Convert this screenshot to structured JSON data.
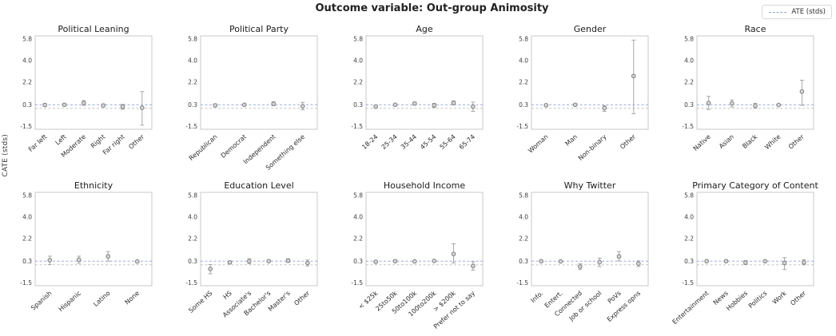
{
  "figure": {
    "suptitle": "Outcome variable: Out-group Animosity",
    "ylabel": "CATE (stds)",
    "legend_label": "ATE (stds)"
  },
  "colors": {
    "ate_line": "#9aa8dc",
    "zero_line": "#c6c6c6",
    "marker_fill": "#d8d8d8",
    "marker_stroke": "#7d7d7d",
    "error_bar": "#a8a8a8",
    "spine": "#c9c9c9",
    "ytick_text": "#3d3d3d",
    "xtick_text": "#2b2b2b",
    "title_text": "#1c1c1c",
    "plot_bg": "#ffffff"
  },
  "axes": {
    "yticks": [
      5.8,
      4.0,
      2.2,
      0.3,
      -1.5
    ],
    "ylim": [
      -1.75,
      6.05
    ],
    "ate_value": 0.3,
    "zero_value": 0.0
  },
  "chart_data": [
    {
      "type": "scatter",
      "title": "Political Leaning",
      "categories": [
        "Far left",
        "Left",
        "Moderate",
        "Right",
        "Far right",
        "Other"
      ],
      "values": [
        0.28,
        0.3,
        0.45,
        0.24,
        0.14,
        0.05
      ],
      "err_low": [
        0.16,
        0.2,
        0.25,
        0.12,
        -0.08,
        -1.4
      ],
      "err_high": [
        0.4,
        0.4,
        0.65,
        0.36,
        0.33,
        1.4
      ]
    },
    {
      "type": "scatter",
      "title": "Political Party",
      "categories": [
        "Republican",
        "Democrat",
        "Independent",
        "Something else"
      ],
      "values": [
        0.25,
        0.3,
        0.38,
        0.18
      ],
      "err_low": [
        0.13,
        0.24,
        0.22,
        -0.12
      ],
      "err_high": [
        0.37,
        0.36,
        0.55,
        0.5
      ]
    },
    {
      "type": "scatter",
      "title": "Age",
      "categories": [
        "18-24",
        "25-34",
        "35-44",
        "45-54",
        "55-64",
        "65-74"
      ],
      "values": [
        0.15,
        0.3,
        0.4,
        0.25,
        0.45,
        0.15
      ],
      "err_low": [
        0.05,
        0.22,
        0.28,
        0.08,
        0.3,
        -0.25
      ],
      "err_high": [
        0.25,
        0.38,
        0.52,
        0.42,
        0.62,
        0.52
      ]
    },
    {
      "type": "scatter",
      "title": "Gender",
      "categories": [
        "Woman",
        "Man",
        "Non-binary",
        "Other"
      ],
      "values": [
        0.26,
        0.3,
        0.02,
        2.7
      ],
      "err_low": [
        0.18,
        0.24,
        -0.25,
        -0.45
      ],
      "err_high": [
        0.34,
        0.36,
        0.22,
        5.7
      ]
    },
    {
      "type": "scatter",
      "title": "Race",
      "categories": [
        "Native",
        "Asian",
        "Black",
        "White",
        "Other"
      ],
      "values": [
        0.45,
        0.42,
        0.22,
        0.28,
        1.4
      ],
      "err_low": [
        -0.1,
        0.12,
        0.02,
        0.23,
        0.25
      ],
      "err_high": [
        1.0,
        0.7,
        0.42,
        0.33,
        2.35
      ]
    },
    {
      "type": "scatter",
      "title": "Ethnicity",
      "categories": [
        "Spanish",
        "Hispanic",
        "Latino",
        "None"
      ],
      "values": [
        0.38,
        0.42,
        0.7,
        0.27
      ],
      "err_low": [
        0.02,
        0.12,
        0.3,
        0.21
      ],
      "err_high": [
        0.72,
        0.72,
        1.1,
        0.33
      ]
    },
    {
      "type": "scatter",
      "title": "Education Level",
      "categories": [
        "Some HS",
        "HS",
        "Associate's",
        "Bachelor's",
        "Master's",
        "Other"
      ],
      "values": [
        -0.35,
        0.2,
        0.3,
        0.3,
        0.35,
        0.15
      ],
      "err_low": [
        -0.75,
        0.1,
        0.1,
        0.25,
        0.2,
        -0.1
      ],
      "err_high": [
        0.02,
        0.3,
        0.52,
        0.35,
        0.5,
        0.4
      ]
    },
    {
      "type": "scatter",
      "title": "Household Income",
      "categories": [
        "< $25k",
        "25to50k",
        "50to100k",
        "100to200k",
        "> $200k",
        "Prefer not to say"
      ],
      "values": [
        0.25,
        0.3,
        0.28,
        0.32,
        0.9,
        -0.1
      ],
      "err_low": [
        0.15,
        0.22,
        0.22,
        0.24,
        0.15,
        -0.45
      ],
      "err_high": [
        0.35,
        0.38,
        0.34,
        0.4,
        1.75,
        0.25
      ]
    },
    {
      "type": "scatter",
      "title": "Why Twitter",
      "categories": [
        "Info.",
        "Entert.",
        "Connected",
        "Job or school",
        "PoVs",
        "Express opns"
      ],
      "values": [
        0.3,
        0.28,
        -0.15,
        0.22,
        0.7,
        0.1
      ],
      "err_low": [
        0.25,
        0.23,
        -0.4,
        -0.15,
        0.32,
        -0.15
      ],
      "err_high": [
        0.35,
        0.33,
        0.08,
        0.55,
        1.1,
        0.33
      ]
    },
    {
      "type": "scatter",
      "title": "Primary Category of Content",
      "categories": [
        "Entertainment",
        "News",
        "Hobbies",
        "Politics",
        "Work",
        "Other"
      ],
      "values": [
        0.3,
        0.3,
        0.18,
        0.3,
        0.15,
        0.2
      ],
      "err_low": [
        0.25,
        0.24,
        0.02,
        0.25,
        -0.4,
        0.0
      ],
      "err_high": [
        0.35,
        0.36,
        0.35,
        0.35,
        0.6,
        0.42
      ]
    }
  ]
}
